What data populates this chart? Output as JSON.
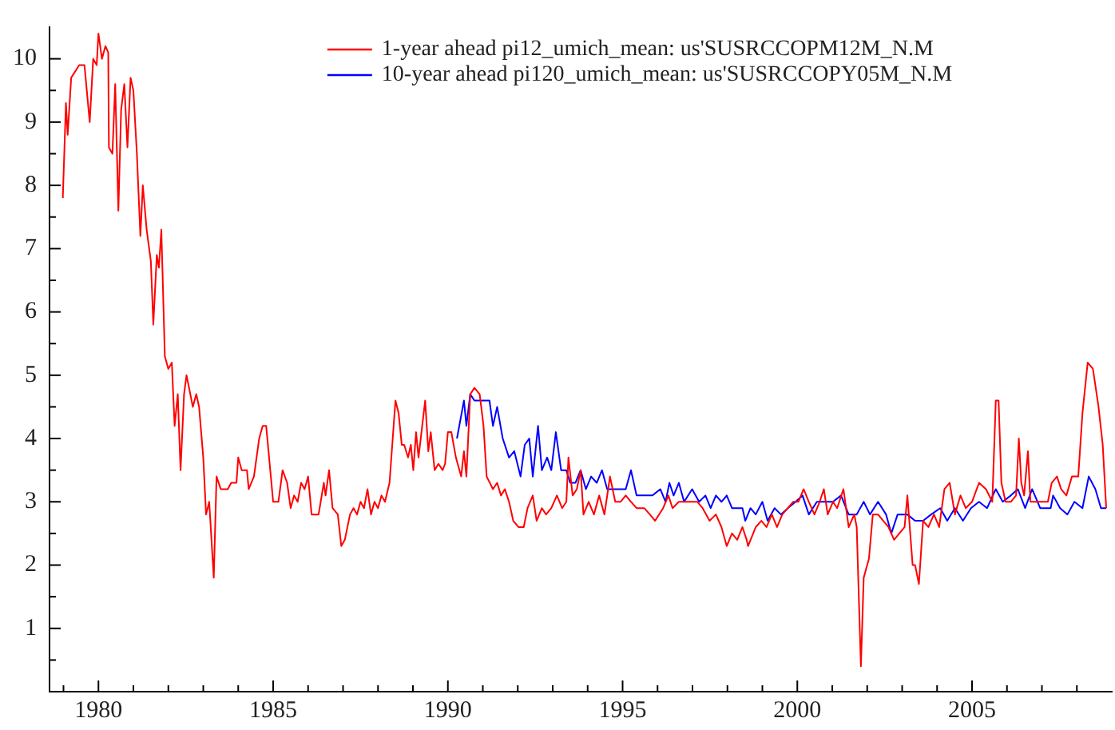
{
  "chart_data": {
    "type": "line",
    "legend": "top",
    "grid": false,
    "xlim": [
      1978.6,
      2009
    ],
    "ylim": [
      0,
      10.5
    ],
    "xticks": [
      {
        "value": 1979,
        "label": null
      },
      1980,
      {
        "value": 1981,
        "label": null
      },
      {
        "value": 1982,
        "label": null
      },
      {
        "value": 1983,
        "label": null
      },
      {
        "value": 1984,
        "label": null
      },
      1985,
      {
        "value": 1986,
        "label": null
      },
      {
        "value": 1987,
        "label": null
      },
      {
        "value": 1988,
        "label": null
      },
      {
        "value": 1989,
        "label": null
      },
      1990,
      {
        "value": 1991,
        "label": null
      },
      {
        "value": 1992,
        "label": null
      },
      {
        "value": 1993,
        "label": null
      },
      {
        "value": 1994,
        "label": null
      },
      1995,
      {
        "value": 1996,
        "label": null
      },
      {
        "value": 1997,
        "label": null
      },
      {
        "value": 1998,
        "label": null
      },
      {
        "value": 1999,
        "label": null
      },
      2000,
      {
        "value": 2001,
        "label": null
      },
      {
        "value": 2002,
        "label": null
      },
      {
        "value": 2003,
        "label": null
      },
      {
        "value": 2004,
        "label": null
      },
      2005,
      {
        "value": 2006,
        "label": null
      },
      {
        "value": 2007,
        "label": null
      },
      {
        "value": 2008,
        "label": null
      }
    ],
    "yticks": [
      {
        "value": 0,
        "label": null
      },
      {
        "value": 0.5,
        "label": null
      },
      1,
      {
        "value": 1.5,
        "label": null
      },
      2,
      {
        "value": 2.5,
        "label": null
      },
      3,
      {
        "value": 3.5,
        "label": null
      },
      4,
      {
        "value": 4.5,
        "label": null
      },
      5,
      {
        "value": 5.5,
        "label": null
      },
      6,
      {
        "value": 6.5,
        "label": null
      },
      7,
      {
        "value": 7.5,
        "label": null
      },
      8,
      {
        "value": 8.5,
        "label": null
      },
      9,
      {
        "value": 9.5,
        "label": null
      },
      10
    ],
    "series": [
      {
        "name": "1-year ahead pi12_umich_mean: us'SUSRCCOPM12M_N.M",
        "color": "#ff0000",
        "x": [
          1978.98,
          1979.07,
          1979.12,
          1979.22,
          1979.45,
          1979.6,
          1979.75,
          1979.85,
          1979.95,
          1980.0,
          1980.1,
          1980.2,
          1980.28,
          1980.3,
          1980.4,
          1980.48,
          1980.57,
          1980.65,
          1980.74,
          1980.83,
          1980.92,
          1981.0,
          1981.1,
          1981.2,
          1981.27,
          1981.38,
          1981.5,
          1981.57,
          1981.67,
          1981.73,
          1981.8,
          1981.9,
          1982.0,
          1982.1,
          1982.18,
          1982.27,
          1982.35,
          1982.45,
          1982.52,
          1982.63,
          1982.7,
          1982.8,
          1982.88,
          1983.0,
          1983.08,
          1983.17,
          1983.3,
          1983.38,
          1983.5,
          1983.7,
          1983.8,
          1983.95,
          1984.0,
          1984.1,
          1984.25,
          1984.3,
          1984.45,
          1984.6,
          1984.7,
          1984.8,
          1984.95,
          1985.0,
          1985.15,
          1985.27,
          1985.4,
          1985.5,
          1985.6,
          1985.7,
          1985.8,
          1985.9,
          1986.0,
          1986.1,
          1986.3,
          1986.45,
          1986.5,
          1986.6,
          1986.7,
          1986.85,
          1986.95,
          1987.05,
          1987.2,
          1987.3,
          1987.4,
          1987.5,
          1987.6,
          1987.7,
          1987.8,
          1987.9,
          1988.0,
          1988.1,
          1988.2,
          1988.33,
          1988.5,
          1988.59,
          1988.68,
          1988.75,
          1988.86,
          1988.94,
          1989.01,
          1989.09,
          1989.16,
          1989.35,
          1989.44,
          1989.51,
          1989.62,
          1989.73,
          1989.85,
          1989.92,
          1990.0,
          1990.1,
          1990.23,
          1990.38,
          1990.46,
          1990.53,
          1990.64,
          1990.76,
          1990.91,
          1991.02,
          1991.11,
          1991.29,
          1991.41,
          1991.52,
          1991.63,
          1991.75,
          1991.87,
          1992.02,
          1992.17,
          1992.28,
          1992.43,
          1992.54,
          1992.69,
          1992.81,
          1992.96,
          1993.12,
          1993.27,
          1993.39,
          1993.45,
          1993.57,
          1993.69,
          1993.8,
          1993.88,
          1994.03,
          1994.18,
          1994.33,
          1994.48,
          1994.64,
          1994.79,
          1994.94,
          1995.09,
          1995.24,
          1995.4,
          1995.62,
          1995.78,
          1995.93,
          1996.16,
          1996.31,
          1996.43,
          1996.61,
          1996.76,
          1996.95,
          1997.14,
          1997.29,
          1997.49,
          1997.67,
          1997.83,
          1997.98,
          1998.13,
          1998.28,
          1998.43,
          1998.55,
          1998.59,
          1998.81,
          1998.97,
          1999.12,
          1999.27,
          1999.42,
          1999.57,
          1999.73,
          1999.88,
          2000.03,
          2000.18,
          2000.33,
          2000.49,
          2000.64,
          2000.76,
          2000.87,
          2001.02,
          2001.14,
          2001.32,
          2001.47,
          2001.63,
          2001.7,
          2001.82,
          2001.9,
          2002.05,
          2002.16,
          2002.31,
          2002.46,
          2002.61,
          2002.77,
          2002.92,
          2003.07,
          2003.15,
          2003.3,
          2003.37,
          2003.48,
          2003.6,
          2003.75,
          2003.91,
          2004.06,
          2004.21,
          2004.36,
          2004.51,
          2004.67,
          2004.82,
          2005.0,
          2005.2,
          2005.4,
          2005.58,
          2005.68,
          2005.76,
          2005.84,
          2005.96,
          2006.11,
          2006.26,
          2006.34,
          2006.41,
          2006.49,
          2006.6,
          2006.67,
          2006.87,
          2007.02,
          2007.17,
          2007.28,
          2007.43,
          2007.55,
          2007.7,
          2007.86,
          2008.04,
          2008.16,
          2008.31,
          2008.46,
          2008.62,
          2008.74,
          2008.84
        ],
        "values": [
          7.8,
          9.3,
          8.8,
          9.7,
          9.9,
          9.9,
          9.0,
          10.0,
          9.9,
          10.4,
          10.0,
          10.2,
          10.1,
          8.6,
          8.5,
          9.6,
          7.6,
          9.2,
          9.6,
          8.6,
          9.7,
          9.5,
          8.5,
          7.2,
          8.0,
          7.3,
          6.8,
          5.8,
          6.9,
          6.7,
          7.3,
          5.3,
          5.1,
          5.2,
          4.2,
          4.7,
          3.5,
          4.7,
          5.0,
          4.7,
          4.5,
          4.7,
          4.5,
          3.7,
          2.8,
          3.0,
          1.8,
          3.4,
          3.2,
          3.2,
          3.3,
          3.3,
          3.7,
          3.5,
          3.5,
          3.2,
          3.4,
          4.0,
          4.2,
          4.2,
          3.3,
          3.0,
          3.0,
          3.5,
          3.3,
          2.9,
          3.1,
          3.0,
          3.3,
          3.2,
          3.4,
          2.8,
          2.8,
          3.3,
          3.1,
          3.5,
          2.9,
          2.8,
          2.3,
          2.4,
          2.8,
          2.9,
          2.8,
          3.0,
          2.9,
          3.2,
          2.8,
          3.0,
          2.9,
          3.1,
          3.0,
          3.3,
          4.6,
          4.4,
          3.9,
          3.9,
          3.7,
          3.9,
          3.5,
          4.1,
          3.7,
          4.6,
          3.8,
          4.1,
          3.5,
          3.6,
          3.5,
          3.6,
          4.1,
          4.1,
          3.7,
          3.4,
          3.8,
          3.4,
          4.7,
          4.8,
          4.7,
          4.2,
          3.4,
          3.2,
          3.3,
          3.1,
          3.2,
          3.0,
          2.7,
          2.6,
          2.6,
          2.9,
          3.1,
          2.7,
          2.9,
          2.8,
          2.9,
          3.1,
          2.9,
          3.0,
          3.7,
          3.1,
          3.2,
          3.5,
          2.8,
          3.0,
          2.8,
          3.1,
          2.8,
          3.4,
          3.0,
          3.0,
          3.1,
          3.0,
          2.9,
          2.9,
          2.8,
          2.7,
          2.9,
          3.1,
          2.9,
          3.0,
          3.0,
          3.0,
          3.0,
          2.9,
          2.7,
          2.8,
          2.6,
          2.3,
          2.5,
          2.4,
          2.6,
          2.4,
          2.3,
          2.6,
          2.7,
          2.6,
          2.8,
          2.6,
          2.8,
          2.9,
          3.0,
          3.0,
          3.2,
          3.0,
          2.8,
          3.0,
          3.2,
          2.8,
          3.0,
          2.9,
          3.2,
          2.6,
          2.8,
          2.6,
          0.4,
          1.8,
          2.1,
          2.8,
          2.8,
          2.7,
          2.6,
          2.4,
          2.5,
          2.6,
          3.1,
          2.0,
          2.0,
          1.7,
          2.7,
          2.6,
          2.8,
          2.6,
          3.2,
          3.3,
          2.8,
          3.1,
          2.9,
          3.0,
          3.3,
          3.2,
          3.0,
          4.6,
          4.6,
          3.3,
          3.0,
          3.0,
          3.1,
          4.0,
          3.3,
          3.1,
          3.8,
          3.0,
          3.0,
          3.0,
          3.0,
          3.3,
          3.4,
          3.2,
          3.1,
          3.4,
          3.4,
          4.4,
          5.2,
          5.1,
          4.5,
          3.9,
          2.9
        ]
      },
      {
        "name": "10-year ahead pi120_umich_mean: us'SUSRCCOPY05M_N.M",
        "color": "#0000ff",
        "x": [
          1990.26,
          1990.46,
          1990.53,
          1990.64,
          1990.76,
          1990.91,
          1991.06,
          1991.19,
          1991.29,
          1991.41,
          1991.57,
          1991.75,
          1991.9,
          1992.08,
          1992.2,
          1992.33,
          1992.43,
          1992.58,
          1992.69,
          1992.84,
          1992.96,
          1993.09,
          1993.24,
          1993.39,
          1993.5,
          1993.65,
          1993.8,
          1993.95,
          1994.1,
          1994.26,
          1994.41,
          1994.56,
          1994.71,
          1994.94,
          1995.09,
          1995.24,
          1995.4,
          1995.62,
          1995.85,
          1996.08,
          1996.23,
          1996.34,
          1996.46,
          1996.61,
          1996.76,
          1996.99,
          1997.19,
          1997.37,
          1997.52,
          1997.67,
          1997.83,
          1997.98,
          1998.13,
          1998.28,
          1998.43,
          1998.51,
          1998.66,
          1998.81,
          1999.0,
          1999.15,
          1999.35,
          1999.53,
          1999.73,
          1999.95,
          2000.15,
          2000.33,
          2000.56,
          2000.79,
          2001.02,
          2001.25,
          2001.47,
          2001.7,
          2001.9,
          2002.08,
          2002.31,
          2002.54,
          2002.69,
          2002.87,
          2003.15,
          2003.37,
          2003.6,
          2003.83,
          2004.09,
          2004.29,
          2004.51,
          2004.74,
          2004.97,
          2005.2,
          2005.43,
          2005.68,
          2005.88,
          2006.11,
          2006.31,
          2006.52,
          2006.72,
          2006.95,
          2007.25,
          2007.32,
          2007.52,
          2007.73,
          2007.93,
          2008.16,
          2008.34,
          2008.53,
          2008.69,
          2008.84
        ],
        "values": [
          4.0,
          4.6,
          4.2,
          4.7,
          4.6,
          4.6,
          4.6,
          4.6,
          4.2,
          4.5,
          4.0,
          3.7,
          3.8,
          3.4,
          3.9,
          4.0,
          3.4,
          4.2,
          3.5,
          3.7,
          3.5,
          4.1,
          3.5,
          3.5,
          3.3,
          3.3,
          3.5,
          3.2,
          3.4,
          3.3,
          3.5,
          3.2,
          3.2,
          3.2,
          3.2,
          3.5,
          3.1,
          3.1,
          3.1,
          3.2,
          3.0,
          3.3,
          3.1,
          3.3,
          3.0,
          3.2,
          3.0,
          3.1,
          2.9,
          3.1,
          3.0,
          3.1,
          2.9,
          2.9,
          2.9,
          2.7,
          2.9,
          2.8,
          3.0,
          2.7,
          2.9,
          2.8,
          2.9,
          3.0,
          3.1,
          2.8,
          3.0,
          3.0,
          3.0,
          3.1,
          2.8,
          2.8,
          3.0,
          2.8,
          3.0,
          2.8,
          2.5,
          2.8,
          2.8,
          2.7,
          2.7,
          2.8,
          2.9,
          2.7,
          2.9,
          2.7,
          2.9,
          3.0,
          2.9,
          3.2,
          3.0,
          3.1,
          3.2,
          2.9,
          3.2,
          2.9,
          2.9,
          3.1,
          2.9,
          2.8,
          3.0,
          2.9,
          3.4,
          3.2,
          2.9,
          2.9
        ]
      }
    ]
  }
}
